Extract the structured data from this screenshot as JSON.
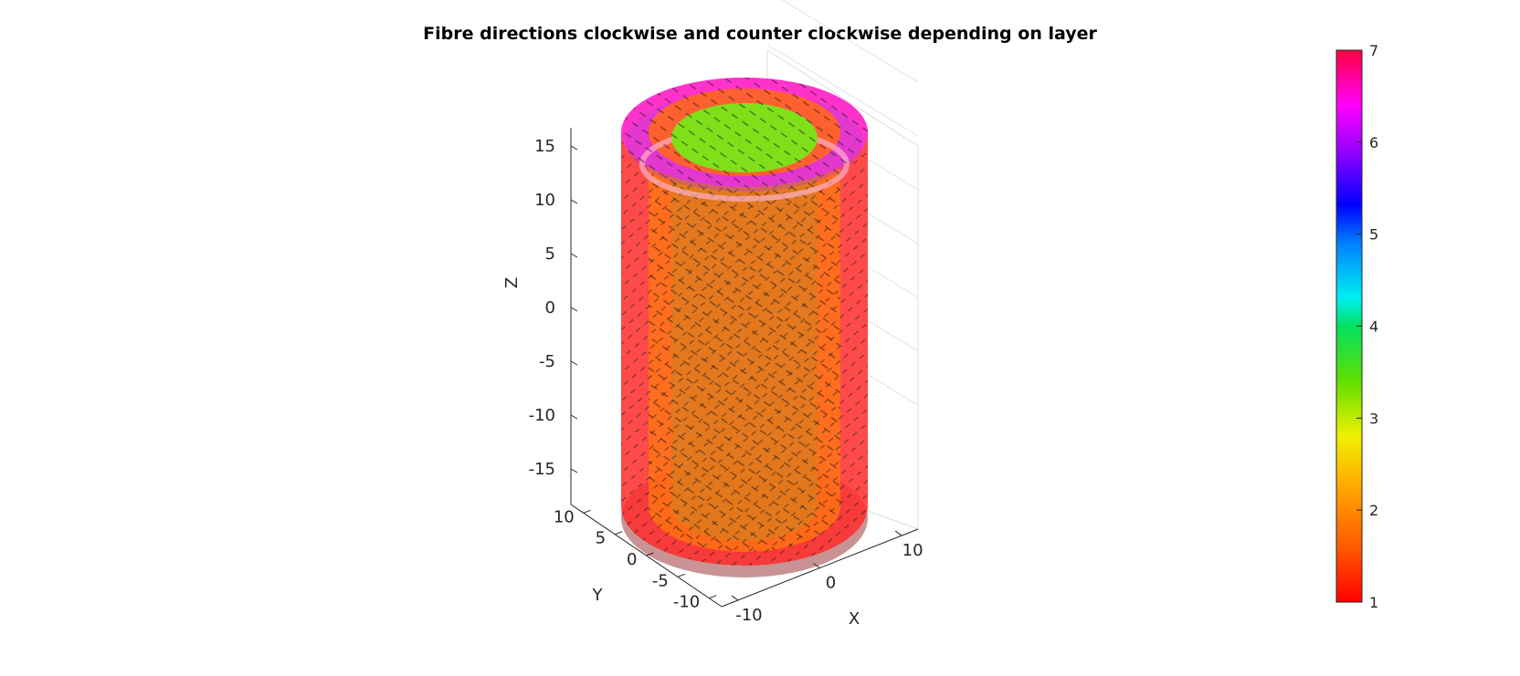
{
  "chart_data": {
    "type": "3d-surface",
    "title": "Fibre directions clockwise and counter clockwise depending on layer",
    "xlabel": "X",
    "ylabel": "Y",
    "zlabel": "Z",
    "x_ticks": [
      "-10",
      "0",
      "10"
    ],
    "y_ticks": [
      "-10",
      "-5",
      "0",
      "5",
      "10"
    ],
    "z_ticks": [
      "-15",
      "-10",
      "-5",
      "0",
      "5",
      "10",
      "15"
    ],
    "xlim": [
      -12,
      12
    ],
    "ylim": [
      -12,
      12
    ],
    "zlim": [
      -17,
      17
    ],
    "grid": true,
    "colormap": "hsv-like",
    "colorbar": {
      "position": "right",
      "ticks": [
        "1",
        "2",
        "3",
        "4",
        "5",
        "6",
        "7"
      ],
      "range": [
        1,
        7
      ]
    },
    "layers": [
      {
        "name": "outer cylinder wall",
        "value": 1,
        "color": "#ff2a2a"
      },
      {
        "name": "inner cylinder wall",
        "value": 1.5,
        "color": "#ff7a10"
      },
      {
        "name": "top annulus",
        "value": 6.5,
        "color": "#ff33cc"
      },
      {
        "name": "top core",
        "value": 2.6,
        "color": "#7fe01a"
      }
    ],
    "annotations": "black fibre direction vectors drawn over all surfaces"
  }
}
